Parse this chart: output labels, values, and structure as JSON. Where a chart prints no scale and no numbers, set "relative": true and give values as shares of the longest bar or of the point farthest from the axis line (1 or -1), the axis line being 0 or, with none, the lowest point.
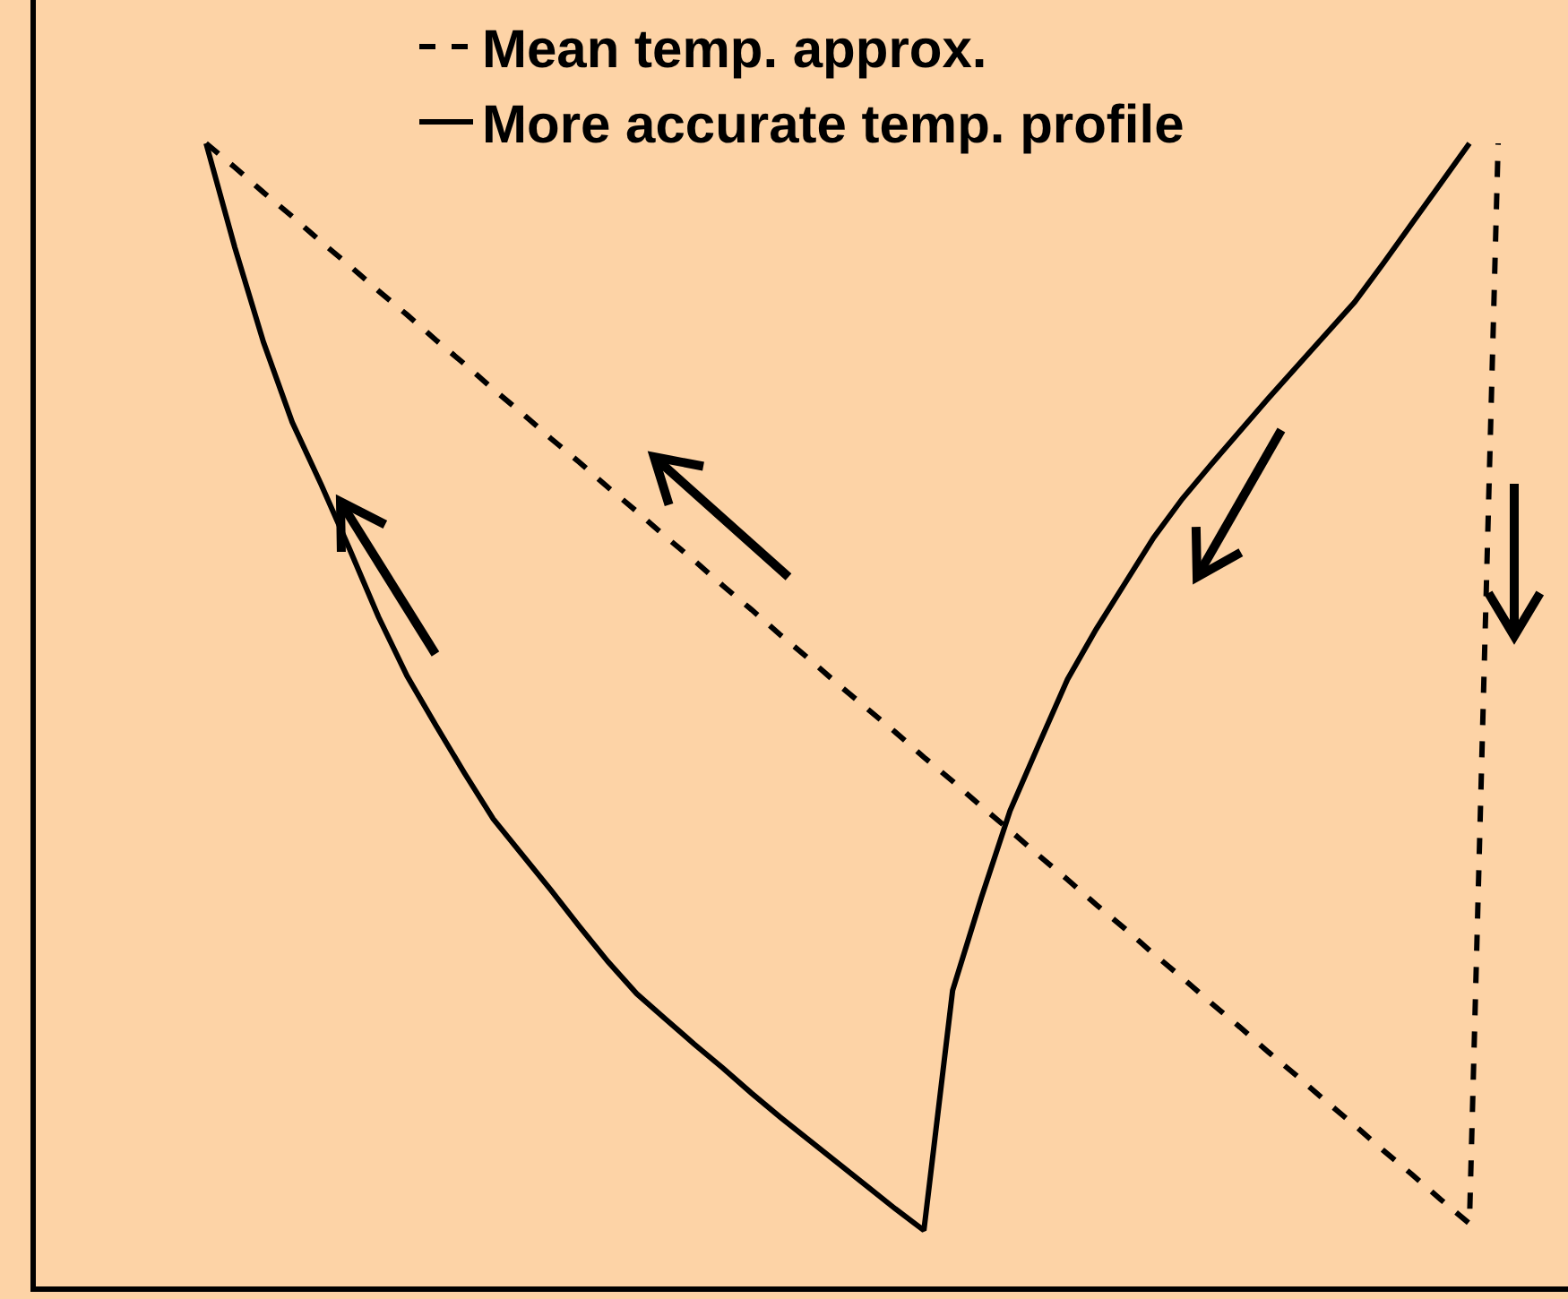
{
  "chart_data": {
    "type": "line",
    "relative": true,
    "legend": "top",
    "categories": [
      null,
      null,
      null,
      null,
      null,
      null,
      null,
      null,
      null,
      null,
      null,
      null,
      null,
      null,
      null,
      null,
      null,
      null,
      null,
      null,
      null,
      null,
      null,
      null,
      null,
      null,
      null,
      null,
      null,
      null,
      null,
      null,
      null,
      null,
      null,
      null,
      null,
      null,
      null,
      null,
      null,
      null,
      null,
      null,
      null,
      null
    ],
    "series": [
      {
        "name": "Mean temp. approx.",
        "color": "#000000",
        "line_style": "dashed",
        "values": [
          1.0,
          0.979,
          0.957,
          0.936,
          0.914,
          0.893,
          0.871,
          0.85,
          0.828,
          0.807,
          0.785,
          0.764,
          0.742,
          0.721,
          0.699,
          0.678,
          0.656,
          0.635,
          0.613,
          0.592,
          0.57,
          0.549,
          0.527,
          0.506,
          0.485,
          0.463,
          0.442,
          0.42,
          0.399,
          0.377,
          0.356,
          0.334,
          0.313,
          0.291,
          0.27,
          0.248,
          0.227,
          0.205,
          0.184,
          0.162,
          0.141,
          0.119,
          0.098,
          0.076,
          0.055,
          1.0
        ]
      },
      {
        "name": "More accurate temp. profile",
        "color": "#000000",
        "line_style": "solid",
        "values": [
          1.0,
          0.909,
          0.826,
          0.756,
          0.702,
          0.645,
          0.586,
          0.534,
          0.491,
          0.449,
          0.409,
          0.378,
          0.347,
          0.315,
          0.284,
          0.256,
          0.234,
          0.212,
          0.191,
          0.169,
          0.148,
          0.128,
          0.108,
          0.088,
          0.068,
          0.049,
          0.259,
          0.34,
          0.416,
          0.474,
          0.531,
          0.575,
          0.615,
          0.655,
          0.689,
          0.719,
          0.748,
          0.777,
          0.805,
          0.833,
          0.861,
          0.895,
          0.93,
          0.965,
          1.0,
          null
        ]
      }
    ]
  }
}
